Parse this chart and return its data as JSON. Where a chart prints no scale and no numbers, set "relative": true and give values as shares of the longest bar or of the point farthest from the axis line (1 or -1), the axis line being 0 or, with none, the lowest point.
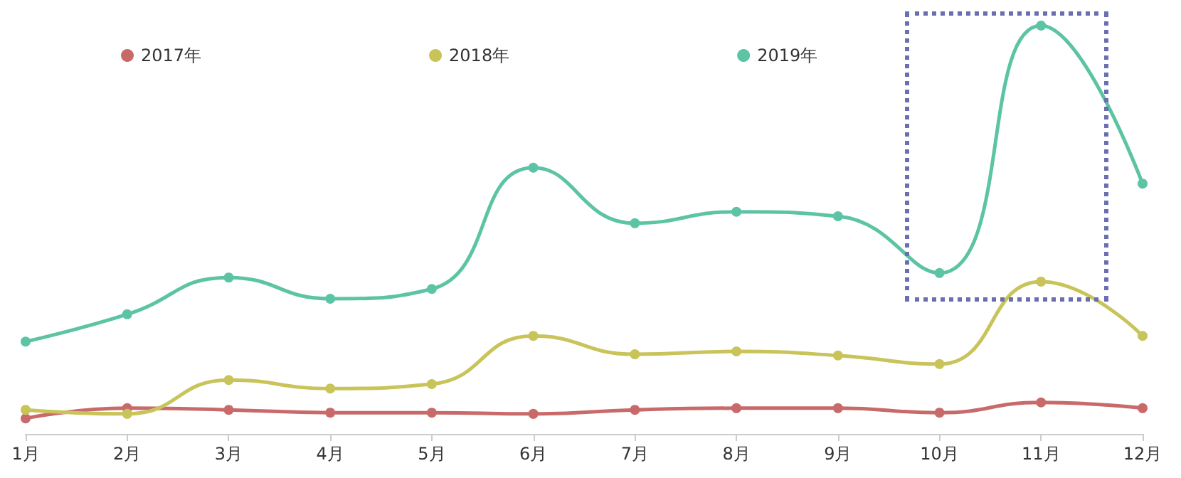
{
  "chart_data": {
    "type": "line",
    "relative": true,
    "categories": [
      "1月",
      "2月",
      "3月",
      "4月",
      "5月",
      "6月",
      "7月",
      "8月",
      "9月",
      "10月",
      "11月",
      "12月"
    ],
    "series": [
      {
        "name": "2017年",
        "color": "#c96a6a",
        "values": [
          0.038,
          0.063,
          0.059,
          0.052,
          0.052,
          0.049,
          0.059,
          0.063,
          0.063,
          0.052,
          0.077,
          0.063
        ]
      },
      {
        "name": "2018年",
        "color": "#c8c45a",
        "values": [
          0.059,
          0.049,
          0.132,
          0.111,
          0.122,
          0.24,
          0.195,
          0.202,
          0.192,
          0.171,
          0.373,
          0.24
        ]
      },
      {
        "name": "2019年",
        "color": "#5cc4a4",
        "values": [
          0.226,
          0.293,
          0.383,
          0.331,
          0.355,
          0.652,
          0.516,
          0.544,
          0.533,
          0.394,
          1,
          0.613
        ]
      }
    ],
    "legend": "top",
    "marker": "circle",
    "grid": false
  }
}
